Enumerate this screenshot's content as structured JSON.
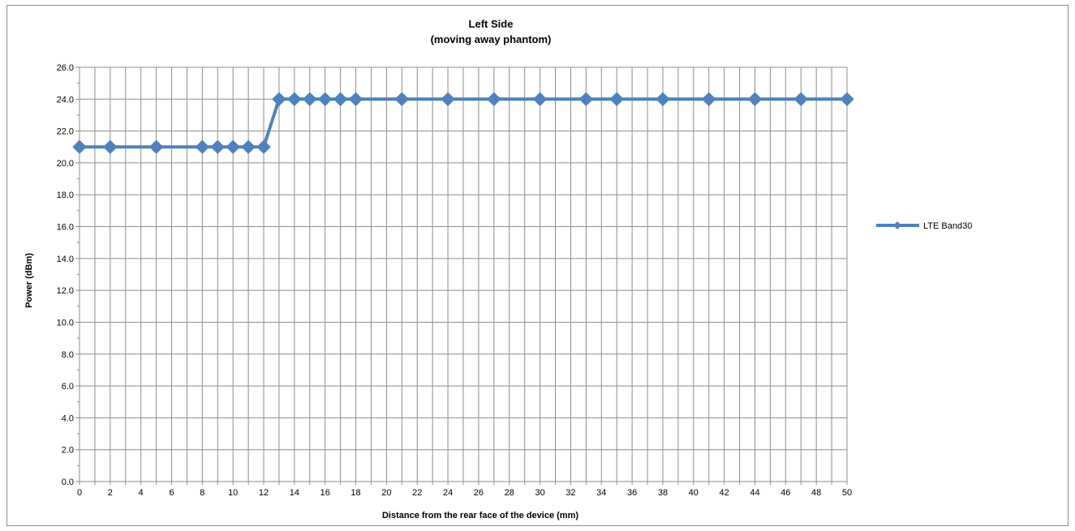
{
  "chart_data": {
    "type": "line",
    "title": "Left Side",
    "subtitle": "(moving away phantom)",
    "xlabel": "Distance from the rear face of the device (mm)",
    "ylabel": "Power (dBm)",
    "categories": [
      "0",
      "2",
      "5",
      "8",
      "9",
      "10",
      "11",
      "12",
      "13",
      "14",
      "15",
      "16",
      "17",
      "18",
      "21",
      "24",
      "27",
      "30",
      "33",
      "35",
      "38",
      "41",
      "44",
      "47",
      "50"
    ],
    "x_tick_labels": [
      "0",
      "2",
      "4",
      "6",
      "8",
      "10",
      "12",
      "14",
      "16",
      "18",
      "20",
      "22",
      "24",
      "26",
      "28",
      "30",
      "32",
      "34",
      "36",
      "38",
      "40",
      "42",
      "44",
      "46",
      "48",
      "50"
    ],
    "y_tick_labels": [
      "0.0",
      "2.0",
      "4.0",
      "6.0",
      "8.0",
      "10.0",
      "12.0",
      "14.0",
      "16.0",
      "18.0",
      "20.0",
      "22.0",
      "24.0",
      "26.0"
    ],
    "ylim": [
      0,
      26
    ],
    "grid": true,
    "legend_position": "right",
    "series": [
      {
        "name": "LTE Band30",
        "color": "#4f81bd",
        "values": [
          21.0,
          21.0,
          21.0,
          21.0,
          21.0,
          21.0,
          21.0,
          21.0,
          24.0,
          24.0,
          24.0,
          24.0,
          24.0,
          24.0,
          24.0,
          24.0,
          24.0,
          24.0,
          24.0,
          24.0,
          24.0,
          24.0,
          24.0,
          24.0,
          24.0
        ]
      }
    ]
  }
}
